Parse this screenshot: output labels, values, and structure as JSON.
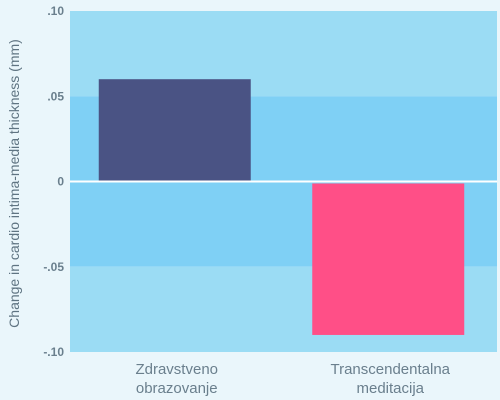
{
  "colors": {
    "page_background": "#eaf6fb",
    "band_outer": "#9bdcf4",
    "band_inner": "#7fd0f5",
    "zero_line": "#ffffff",
    "text": "#6a7f8d"
  },
  "chart_data": {
    "type": "bar",
    "title": "",
    "xlabel": "",
    "ylabel": "Change in cardio intima-media thickness (mm)",
    "categories": [
      [
        "Zdravstveno",
        "obrazovanje"
      ],
      [
        "Transcendentalna",
        "meditacija"
      ]
    ],
    "values": [
      0.06,
      -0.09
    ],
    "bar_colors": [
      "#4a5384",
      "#ff4f87"
    ],
    "ylim": [
      -0.1,
      0.1
    ],
    "yticks": [
      0.1,
      0.05,
      0,
      -0.05,
      -0.1
    ],
    "ytick_labels": [
      ".10",
      ".05",
      "0",
      "-.05",
      "-.10"
    ],
    "grid": false,
    "legend": "none"
  }
}
